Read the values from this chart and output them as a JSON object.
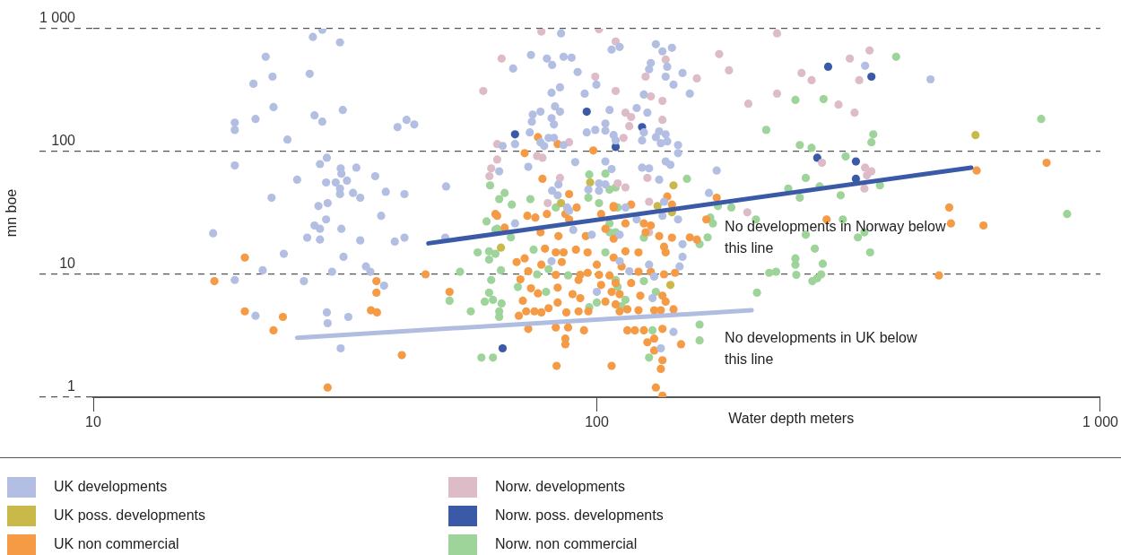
{
  "chart_data": {
    "type": "scatter",
    "xlabel": "Water depth meters",
    "ylabel": "mn boe",
    "annotations": [
      "No developments in Norway below this line",
      "No developments in UK below this line"
    ],
    "log": "xy",
    "xlim": [
      10,
      1000
    ],
    "ylim": [
      1,
      1000
    ],
    "xticks": [
      10,
      100,
      {
        "value": 1000,
        "label": "1 000"
      }
    ],
    "yticks": [
      1,
      10,
      100,
      {
        "value": 1000,
        "label": "1 000"
      }
    ],
    "grid": "y",
    "legend": "bottom",
    "marker": "circle",
    "series": [
      {
        "name": "UK developments",
        "color": "#b3bfe2",
        "x": [
          28.5,
          27.3,
          30.9,
          22.0,
          22.7,
          26.9,
          20.8,
          22.8,
          31.3,
          21.0,
          27.5,
          28.5,
          19.1,
          19.1,
          24.3,
          40.2,
          41.9,
          43.4,
          19.1,
          29.1,
          28.2,
          31.0,
          33.3,
          31.1,
          25.4,
          29.0,
          30.3,
          31.9,
          36.3,
          30.9,
          30.9,
          32.8,
          33.9,
          38.1,
          41.5,
          50.2,
          22.6,
          28.0,
          29.2,
          17.3,
          26.6,
          28.2,
          27.5,
          28.2,
          29.0,
          31.1,
          33.9,
          37.3,
          39.7,
          41.5,
          23.9,
          31.4,
          21.7,
          34.8,
          35.5,
          29.8,
          19.1,
          26.2,
          37.8,
          21.0,
          29.1,
          32.1,
          29.2,
          31.0,
          50.0,
          84.9,
          74.0,
          79.6,
          81.5,
          85.9,
          89.1,
          68.2,
          91.6,
          107,
          111,
          131,
          135,
          141,
          128,
          127,
          138,
          137,
          148,
          142,
          99.8,
          84.5,
          81.3,
          94.6,
          124,
          153,
          82.6,
          84.5,
          77.3,
          74.6,
          74.3,
          81.3,
          82.2,
          106,
          120,
          126,
          104,
          95.5,
          99.3,
          104,
          73.6,
          80.2,
          82.2,
          77.3,
          78.6,
          85.9,
          108,
          109,
          124,
          133,
          131,
          137,
          123,
          134,
          138,
          145,
          65.0,
          68.8,
          145,
          90.6,
          104,
          107,
          123,
          127,
          137,
          140,
          64.0,
          73.1,
          133,
          173,
          83.9,
          81.5,
          83.6,
          96.2,
          101,
          101,
          104,
          167,
          136,
          87.3,
          88.1,
          114,
          341,
          460,
          68.8,
          89.8,
          97.7,
          111,
          120,
          135,
          145,
          148,
          148,
          81.3,
          127,
          146,
          116,
          130,
          100,
          129,
          142,
          134,
          111
        ],
        "values": [
          980,
          857,
          774,
          591,
          407,
          429,
          356,
          230,
          218,
          184,
          197,
          175,
          172,
          150,
          125,
          158,
          181,
          166,
          77,
          89,
          79,
          73,
          74,
          66,
          59,
          56,
          56,
          58,
          63,
          50,
          45,
          46,
          42,
          47,
          45,
          52,
          42,
          36,
          38,
          21.6,
          19.9,
          19.2,
          25,
          23.5,
          28,
          23.5,
          18.9,
          30,
          18.5,
          19.9,
          14.7,
          13.9,
          10.8,
          11.6,
          10.5,
          10.5,
          9.0,
          8.8,
          8.1,
          4.6,
          4.9,
          4.5,
          4.0,
          2.5,
          19.9,
          916,
          611,
          571,
          507,
          591,
          581,
          474,
          444,
          676,
          711,
          748,
          654,
          699,
          525,
          467,
          490,
          407,
          436,
          350,
          350,
          333,
          301,
          296,
          291,
          296,
          233,
          211,
          211,
          200,
          175,
          187,
          166,
          218,
          226,
          207,
          169,
          143,
          150,
          148,
          143,
          129,
          129,
          119,
          111,
          113,
          136,
          123,
          143,
          146,
          131,
          138,
          123,
          117,
          121,
          113,
          111,
          115,
          97,
          82,
          83,
          72,
          74,
          73,
          83,
          78,
          69,
          75,
          59,
          70,
          54,
          48,
          44,
          49,
          48,
          55,
          54,
          46,
          39,
          35,
          33,
          35,
          499,
          387,
          26,
          23,
          21,
          21,
          28,
          30,
          28,
          17.6,
          13.9,
          12.8,
          12.0,
          11.6,
          10.6,
          9.6,
          7.2,
          6.4,
          3.4,
          2.5,
          12.8
        ]
      },
      {
        "name": "UK poss. developments",
        "color": "#c8b94a",
        "x": [
          97.0,
          142,
          84.9,
          132,
          565,
          64.5,
          140,
          141
        ],
        "values": [
          56,
          53,
          38,
          36,
          136,
          16.5,
          8.2,
          32
        ]
      },
      {
        "name": "UK non commercial",
        "color": "#f59a45",
        "x": [
          20.0,
          17.4,
          20.0,
          23.8,
          22.8,
          29.2,
          36.5,
          36.5,
          35.6,
          36.6,
          41.0,
          45.7,
          51.0,
          62.9,
          63.4,
          72.8,
          75.5,
          79.6,
          86.6,
          88.1,
          102,
          108,
          65.6,
          77.3,
          83.9,
          95.1,
          104,
          108,
          114,
          124,
          128,
          125,
          133,
          141,
          153,
          158,
          165,
          78.9,
          82.9,
          85.9,
          90.9,
          95.9,
          69.3,
          71.9,
          85.2,
          77.6,
          108,
          114,
          121,
          136,
          137,
          100,
          112,
          73.1,
          82.9,
          92.7,
          95.9,
          101,
          106,
          121,
          128,
          136,
          143,
          70.5,
          92.0,
          102,
          109,
          117,
          74.0,
          83.6,
          76.4,
          89.5,
          107,
          111,
          92.7,
          104,
          122,
          135,
          71.3,
          83.6,
          80.2,
          109,
          137,
          70.0,
          72.4,
          75.2,
          77.6,
          87.0,
          92.0,
          96.2,
          111,
          115,
          121,
          130,
          134,
          142,
          73.1,
          82.9,
          87.7,
          94.3,
          115,
          119,
          124,
          135,
          86.6,
          86.6,
          126,
          130,
          147,
          130,
          135,
          134,
          83.2,
          107,
          131,
          135,
          76.4,
          83.6,
          71.9,
          98.4,
          78.0,
          88.1,
          138,
          141,
          173,
          117,
          108,
          91.2,
          568,
          782,
          501,
          286,
          505,
          586,
          478
        ],
        "values": [
          13.7,
          8.8,
          5.0,
          4.5,
          3.5,
          1.2,
          8.8,
          7.1,
          5.1,
          4.9,
          2.2,
          10.0,
          7.2,
          31,
          30,
          30,
          29,
          31,
          31,
          28,
          31,
          35,
          24,
          22,
          20.5,
          20.5,
          23.5,
          19.5,
          26,
          26,
          25,
          22,
          20.5,
          19.9,
          20,
          19.2,
          28,
          16.2,
          15.1,
          15.1,
          15.9,
          15.1,
          12.6,
          13.5,
          12.6,
          12.0,
          13.7,
          15.4,
          15.1,
          16.8,
          15.1,
          12.0,
          11.6,
          10.6,
          9.9,
          9.9,
          10.3,
          9.9,
          9.8,
          10.5,
          10.5,
          10.0,
          10.3,
          9.1,
          9.0,
          8.2,
          8.5,
          8.5,
          7.7,
          7.8,
          7.0,
          6.9,
          7.2,
          6.9,
          6.4,
          6.0,
          6.7,
          6.7,
          6.1,
          5.9,
          5.3,
          5.7,
          6.0,
          4.6,
          5.0,
          5.0,
          4.9,
          4.9,
          5.0,
          5.0,
          5.0,
          5.2,
          5.1,
          5.1,
          5.1,
          5.2,
          3.6,
          3.7,
          3.7,
          3.5,
          3.5,
          3.5,
          3.5,
          3.6,
          3.0,
          2.7,
          2.8,
          3.0,
          2.7,
          2.4,
          2.0,
          1.7,
          1.8,
          1.8,
          1.2,
          1.03,
          131,
          115,
          97,
          102,
          60,
          45,
          43,
          37,
          42,
          37,
          36,
          35,
          70,
          81,
          35,
          28,
          26,
          25,
          9.8
        ]
      },
      {
        "name": "Norw. developments",
        "color": "#ddbcc8",
        "x": [
          77.6,
          101,
          109,
          64.7,
          99.3,
          137,
          175,
          183,
          158,
          125,
          59.5,
          109,
          128,
          135,
          200,
          228,
          228,
          114,
          117,
          116,
          135,
          113,
          88.1,
          63.4,
          76.1,
          78.0,
          63.4,
          61.7,
          61.2,
          84.5,
          110,
          114,
          126,
          79.9,
          127,
          199,
          348,
          318,
          255,
          267,
          332,
          302,
          325,
          280,
          341,
          351,
          344,
          340,
          127
        ],
        "values": [
          948,
          990,
          787,
          571,
          407,
          561,
          621,
          458,
          394,
          407,
          311,
          311,
          281,
          258,
          245,
          296,
          916,
          207,
          191,
          161,
          181,
          129,
          119,
          115,
          92,
          89,
          86,
          73,
          63,
          61,
          55,
          51,
          61,
          38,
          39,
          32,
          665,
          571,
          436,
          381,
          381,
          241,
          207,
          81,
          74,
          69,
          64,
          50,
          22
        ]
      },
      {
        "name": "Norw. poss. developments",
        "color": "#3a5aa8",
        "x": [
          68.8,
          95.5,
          123,
          109,
          288,
          351,
          274,
          327,
          327,
          65.0
        ],
        "values": [
          138,
          211,
          158,
          109,
          490,
          407,
          89,
          83,
          60,
          2.5
        ]
      },
      {
        "name": "Norw. non commercial",
        "color": "#9ed49a",
        "x": [
          96.6,
          104,
          61.4,
          65.6,
          64.0,
          67.8,
          73.8,
          96.2,
          101,
          106,
          109,
          151,
          185,
          174,
          217,
          82.9,
          110,
          393,
          248,
          282,
          354,
          351,
          253,
          267,
          312,
          260,
          240,
          277,
          253,
          305,
          365,
          763,
          859,
          308,
          260,
          330,
          340,
          271,
          349,
          248,
          248,
          281,
          220,
          227,
          249,
          279,
          274,
          268,
          60.4,
          62.9,
          58.0,
          61.1,
          61.1,
          53.5,
          61.7,
          61.1,
          51.0,
          59.9,
          62.2,
          56.2,
          59.0,
          62.2,
          63.4,
          67.5,
          62.9,
          74.9,
          64.5,
          76.1,
          80.2,
          87.7,
          69.7,
          79.3,
          64.7,
          64.0,
          64.0,
          96.6,
          100,
          112,
          114,
          109,
          110,
          124,
          131,
          104,
          106,
          109,
          124,
          106,
          160,
          160,
          129,
          127,
          166,
          160,
          170,
          168,
          207,
          208
        ],
        "values": [
          65,
          66,
          53,
          46,
          41,
          37,
          41,
          42,
          38,
          49,
          51,
          60,
          35,
          36,
          150,
          35,
          35,
          591,
          263,
          267,
          138,
          119,
          113,
          107,
          91,
          61,
          50,
          52,
          42,
          44,
          53,
          184,
          31,
          28,
          21,
          20,
          22,
          16.2,
          15.1,
          13.5,
          12.0,
          12.2,
          10.3,
          10.5,
          9.9,
          10.0,
          9.3,
          8.8,
          27,
          23.1,
          15.1,
          15.4,
          13.2,
          10.5,
          9.0,
          7.1,
          6.1,
          6.0,
          6.2,
          5.0,
          2.1,
          2.1,
          23.5,
          20,
          14.7,
          15.9,
          10.8,
          10.0,
          11.0,
          9.8,
          7.9,
          7.2,
          5.8,
          5.0,
          4.5,
          5.4,
          5.9,
          5.5,
          6.2,
          9.0,
          7.9,
          8.8,
          7.2,
          15.1,
          22,
          22,
          19.9,
          26,
          3.9,
          2.9,
          3.5,
          2.1,
          20,
          17.6,
          26,
          29,
          28,
          7.1
        ]
      },
      {
        "type": "line",
        "marker": "none",
        "color": "#3a5aa8",
        "x": [
          46.3,
          554
        ],
        "values": [
          17.9,
          74
        ]
      },
      {
        "type": "line",
        "marker": "none",
        "color": "#b0bde0",
        "x": [
          25.4,
          203
        ],
        "values": [
          3.05,
          5.1
        ]
      }
    ]
  }
}
